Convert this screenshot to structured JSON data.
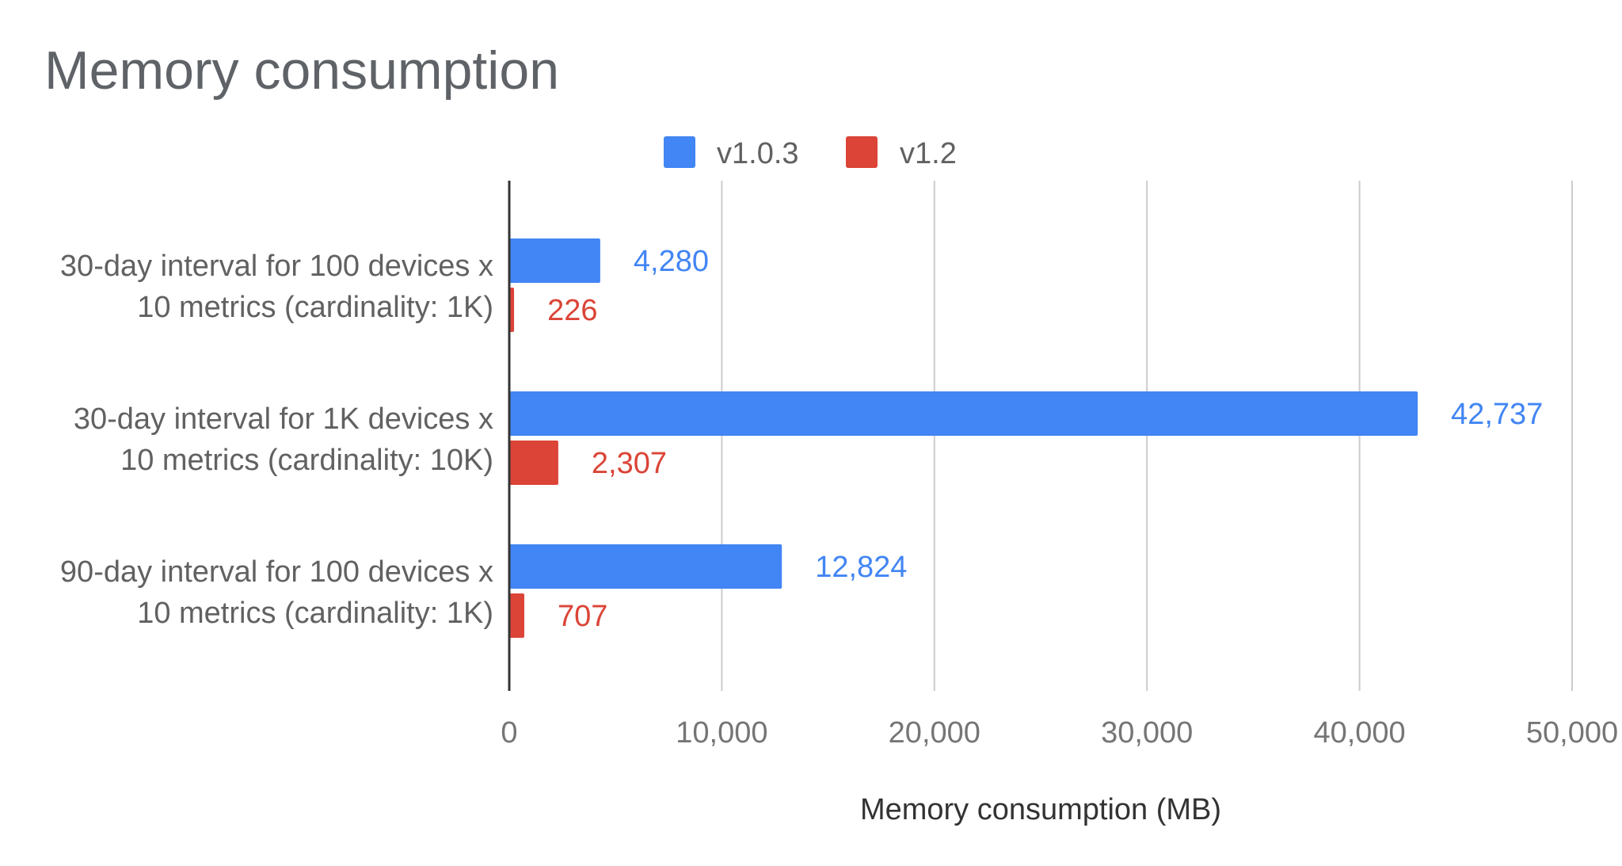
{
  "chart_data": {
    "type": "bar",
    "orientation": "horizontal",
    "title": "Memory consumption",
    "xlabel": "Memory consumption (MB)",
    "ylabel": "",
    "xlim": [
      0,
      50000
    ],
    "x_ticks": [
      0,
      10000,
      20000,
      30000,
      40000,
      50000
    ],
    "x_tick_labels": [
      "0",
      "10,000",
      "20,000",
      "30,000",
      "40,000",
      "50,000"
    ],
    "grid": true,
    "legend_position": "top",
    "categories": [
      [
        "30-day interval for 100 devices x",
        "10 metrics (cardinality: 1K)"
      ],
      [
        "30-day interval for 1K devices x",
        "10 metrics (cardinality: 10K)"
      ],
      [
        "90-day interval for 100 devices x",
        "10 metrics (cardinality: 1K)"
      ]
    ],
    "series": [
      {
        "name": "v1.0.3",
        "color": "#4285f4",
        "values": [
          4280,
          42737,
          12824
        ],
        "labels": [
          "4,280",
          "42,737",
          "12,824"
        ]
      },
      {
        "name": "v1.2",
        "color": "#db4437",
        "values": [
          226,
          2307,
          707
        ],
        "labels": [
          "226",
          "2,307",
          "707"
        ]
      }
    ]
  }
}
